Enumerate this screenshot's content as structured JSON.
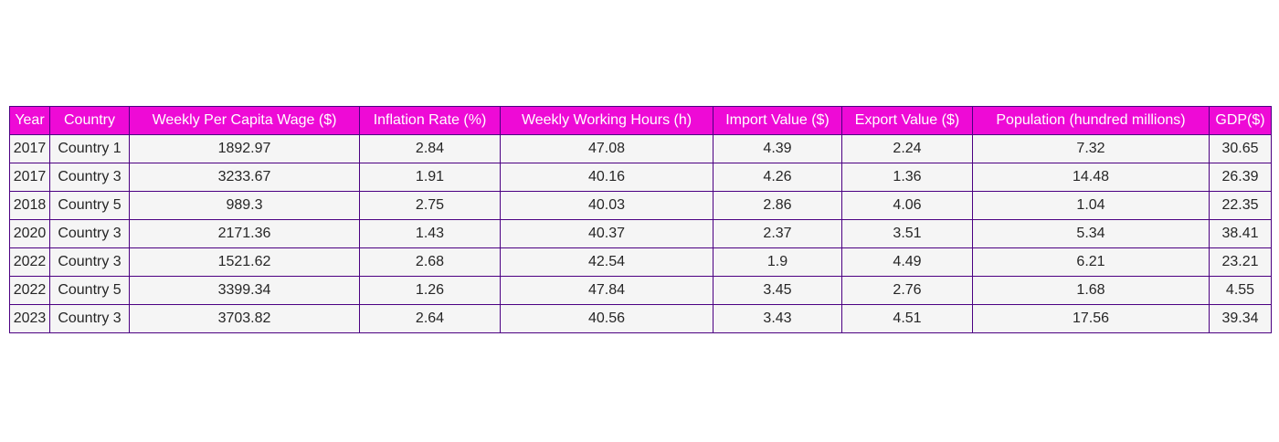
{
  "colors": {
    "header_bg": "#ee0ad6",
    "header_text": "#ffffff",
    "cell_bg": "#f5f5f5",
    "border": "#4b0082",
    "text": "#262626"
  },
  "chart_data": {
    "type": "table",
    "columns": [
      "Year",
      "Country",
      "Weekly Per Capita Wage ($)",
      "Inflation Rate (%)",
      "Weekly Working Hours (h)",
      "Import Value ($)",
      "Export Value ($)",
      "Population (hundred millions)",
      "GDP($)"
    ],
    "rows": [
      [
        "2017",
        "Country 1",
        "1892.97",
        "2.84",
        "47.08",
        "4.39",
        "2.24",
        "7.32",
        "30.65"
      ],
      [
        "2017",
        "Country 3",
        "3233.67",
        "1.91",
        "40.16",
        "4.26",
        "1.36",
        "14.48",
        "26.39"
      ],
      [
        "2018",
        "Country 5",
        "989.3",
        "2.75",
        "40.03",
        "2.86",
        "4.06",
        "1.04",
        "22.35"
      ],
      [
        "2020",
        "Country 3",
        "2171.36",
        "1.43",
        "40.37",
        "2.37",
        "3.51",
        "5.34",
        "38.41"
      ],
      [
        "2022",
        "Country 3",
        "1521.62",
        "2.68",
        "42.54",
        "1.9",
        "4.49",
        "6.21",
        "23.21"
      ],
      [
        "2022",
        "Country 5",
        "3399.34",
        "1.26",
        "47.84",
        "3.45",
        "2.76",
        "1.68",
        "4.55"
      ],
      [
        "2023",
        "Country 3",
        "3703.82",
        "2.64",
        "40.56",
        "3.43",
        "4.51",
        "17.56",
        "39.34"
      ]
    ]
  }
}
